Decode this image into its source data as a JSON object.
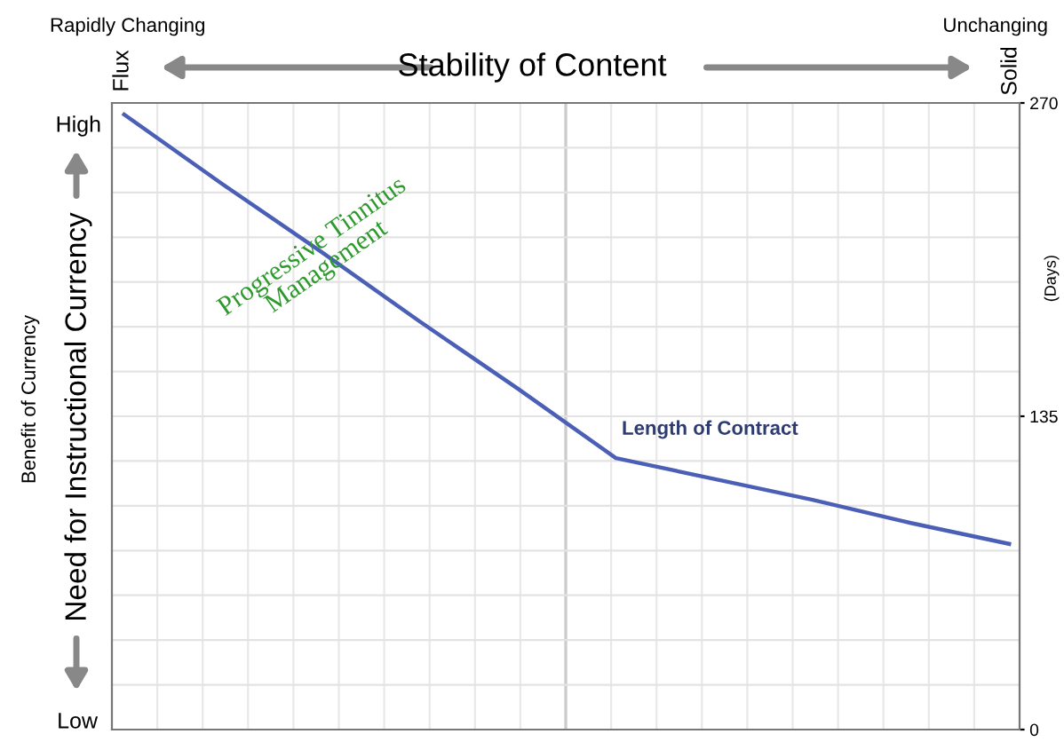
{
  "chart_data": {
    "type": "line",
    "title": "Stability of Content",
    "subtitle": "Rapidly Changing",
    "annotations": [
      "Unchanging",
      "Flux",
      "Solid",
      "Progressive Tinnitus\nManagement",
      "Length of Contract",
      "Benefit of Currency",
      "High",
      "Low",
      "Need for Instructional Currency"
    ],
    "ylabel": "(Days)",
    "categories": [
      null,
      null,
      null,
      null,
      null,
      null,
      null,
      null,
      null,
      null
    ],
    "series": [
      {
        "color": "#4a5fb5",
        "values": [
          265,
          235,
          206,
          176,
          147,
          117,
          108,
          99,
          89,
          80
        ]
      }
    ],
    "ylim": [
      0,
      270
    ],
    "yticks": [
      0,
      135,
      270
    ],
    "grid": true,
    "marker": "none",
    "line_style": "solid"
  }
}
